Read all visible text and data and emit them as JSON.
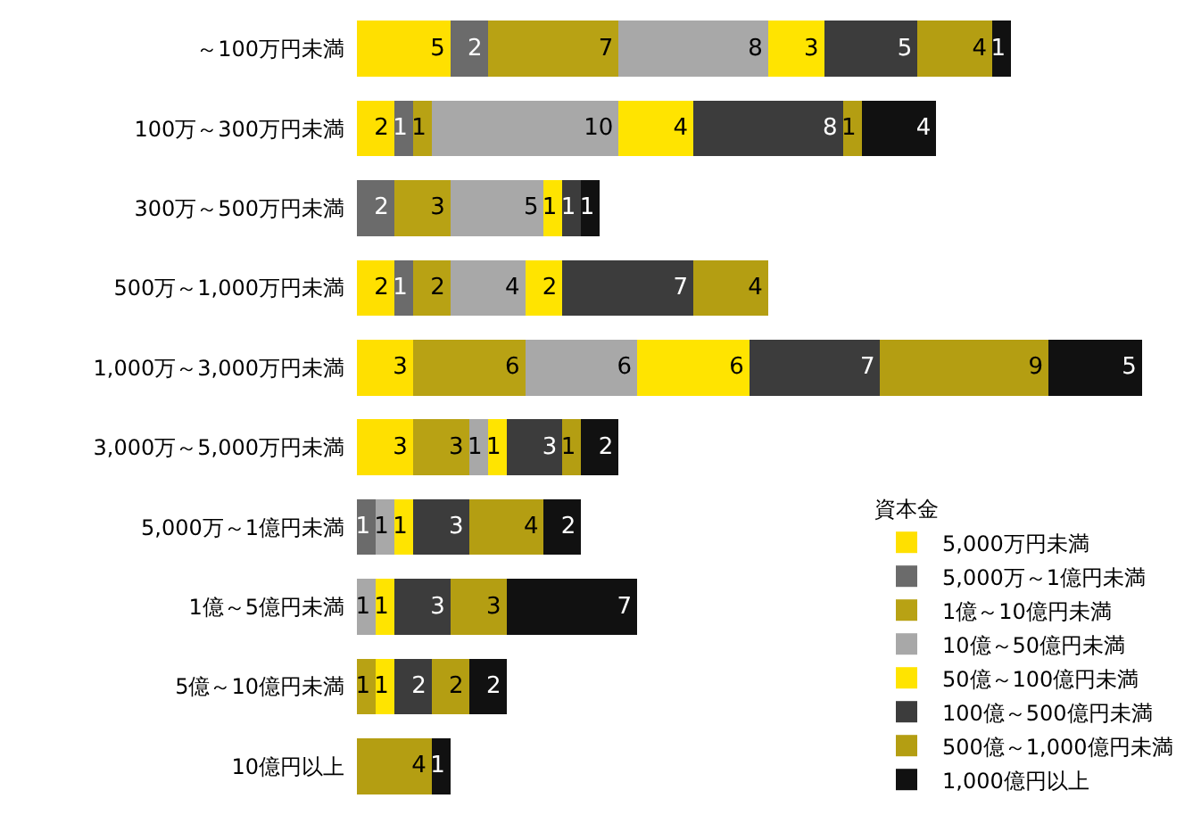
{
  "chart_data": {
    "type": "bar",
    "orientation": "horizontal",
    "stacked": true,
    "data_labels": true,
    "legend": "bottom right",
    "legend_title": "資本金",
    "tick_labels": "y",
    "categories": [
      "～100万円未満",
      "100万～300万円未満",
      "300万～500万円未満",
      "500万～1,000万円未満",
      "1,000万～3,000万円未満",
      "3,000万～5,000万円未満",
      "5,000万～1億円未満",
      "1億～5億円未満",
      "5億～10億円未満",
      "10億円以上"
    ],
    "series": [
      {
        "name": "5,000万円未満",
        "color": "#ffe000",
        "values": [
          5,
          2,
          null,
          2,
          3,
          3,
          null,
          null,
          null,
          null
        ]
      },
      {
        "name": "5,000万～1億円未満",
        "color": "#6b6b6b",
        "values": [
          2,
          1,
          2,
          1,
          null,
          null,
          1,
          null,
          null,
          null
        ]
      },
      {
        "name": "1億～10億円未満",
        "color": "#b8a214",
        "values": [
          7,
          1,
          3,
          2,
          6,
          3,
          null,
          null,
          1,
          null
        ]
      },
      {
        "name": "10億～50億円未満",
        "color": "#a8a8a8",
        "values": [
          8,
          10,
          5,
          4,
          6,
          1,
          1,
          1,
          null,
          null
        ]
      },
      {
        "name": "50億～100億円未満",
        "color": "#ffe400",
        "values": [
          3,
          4,
          1,
          2,
          6,
          1,
          1,
          1,
          1,
          null
        ]
      },
      {
        "name": "100億～500億円未満",
        "color": "#3c3c3c",
        "values": [
          5,
          8,
          1,
          7,
          7,
          3,
          3,
          3,
          2,
          null
        ]
      },
      {
        "name": "500億～1,000億円未満",
        "color": "#b49e12",
        "values": [
          4,
          1,
          null,
          4,
          9,
          1,
          4,
          3,
          2,
          4
        ]
      },
      {
        "name": "1,000億円以上",
        "color": "#111111",
        "values": [
          1,
          4,
          1,
          null,
          5,
          2,
          2,
          7,
          2,
          1
        ]
      }
    ]
  }
}
